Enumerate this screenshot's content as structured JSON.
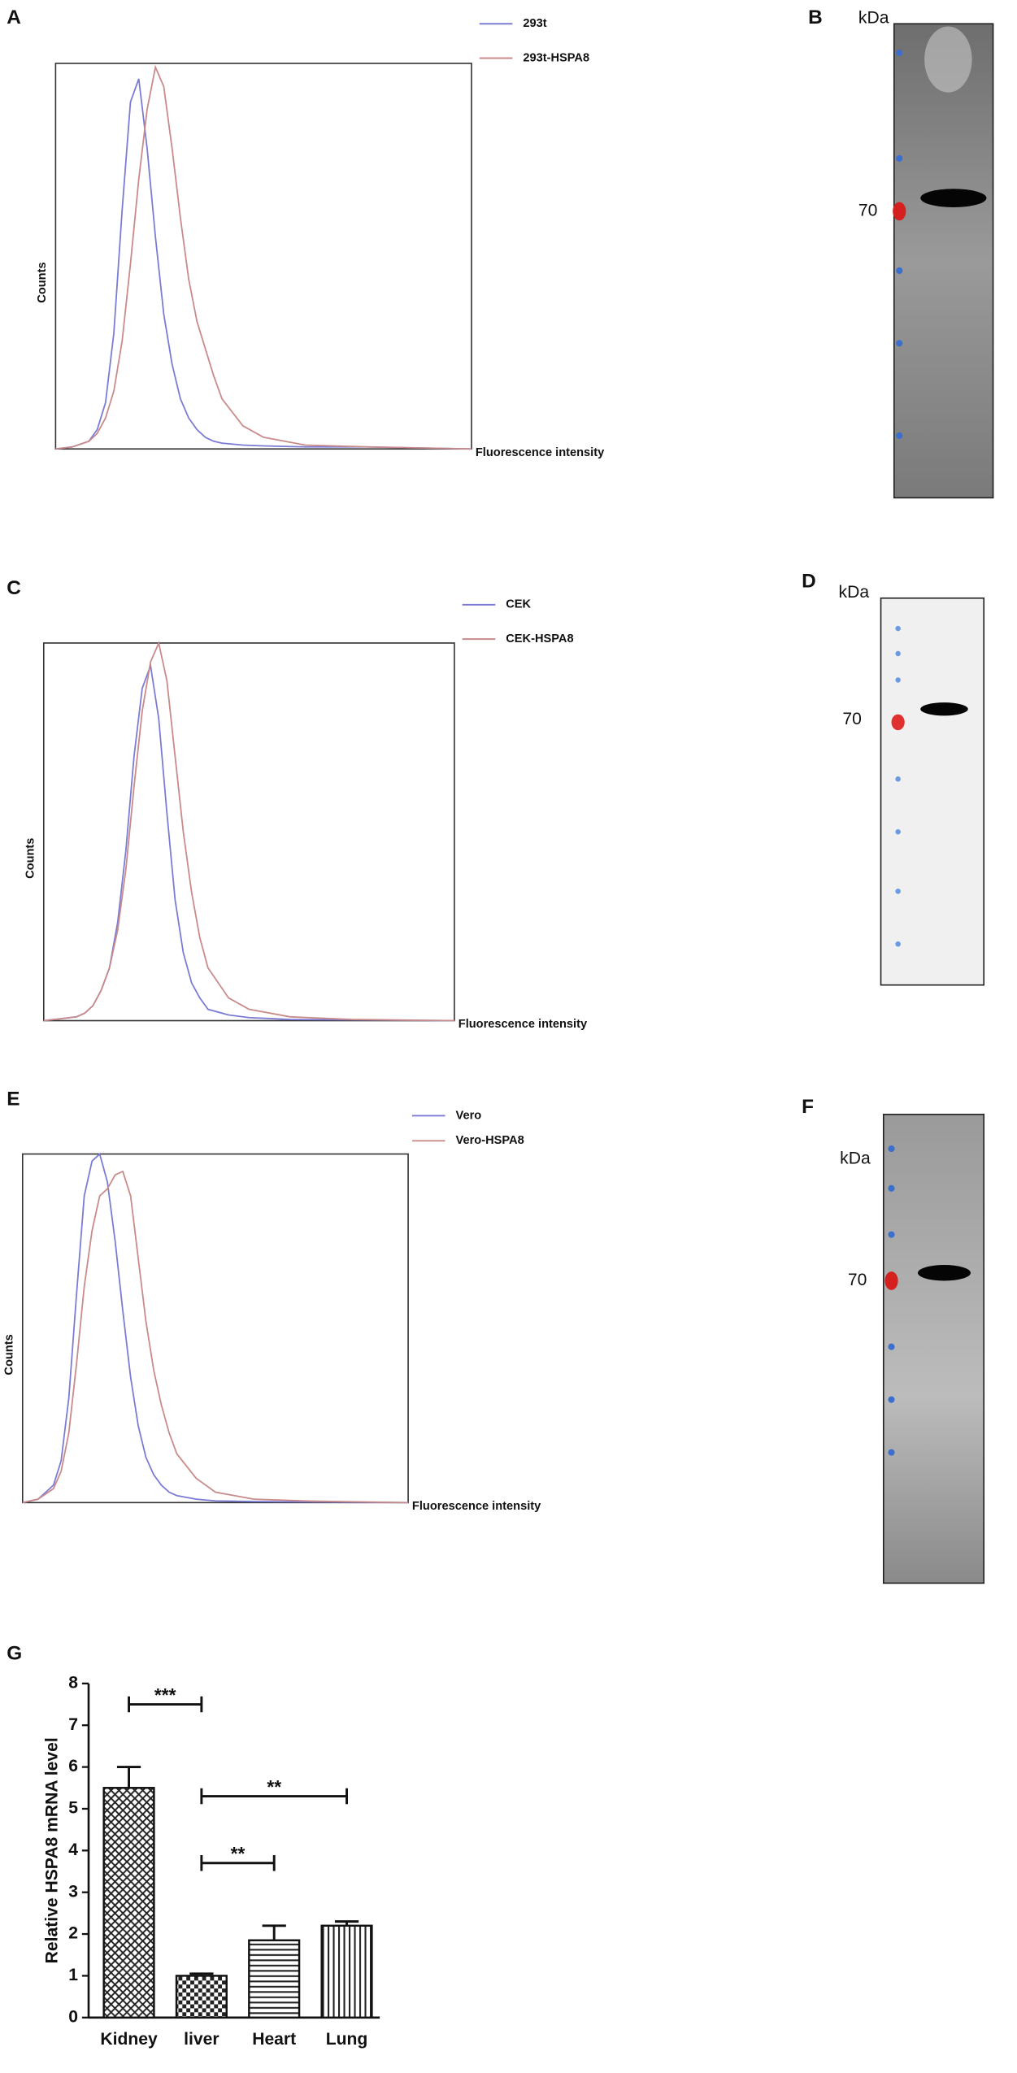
{
  "chart_data": [
    {
      "type": "line",
      "label": "A",
      "xlabel": "Fluorescence intensity",
      "ylabel": "Counts",
      "xlim": [
        0,
        100
      ],
      "ylim": [
        0,
        100
      ],
      "x": [
        0,
        4,
        8,
        10,
        12,
        14,
        16,
        18,
        20,
        22,
        24,
        26,
        28,
        30,
        32,
        34,
        36,
        38,
        40,
        45,
        50,
        60,
        75,
        100
      ],
      "series": [
        {
          "name": "293t",
          "color": "#7b7bd6",
          "values": [
            0,
            0.5,
            2,
            5,
            12,
            30,
            62,
            90,
            96,
            78,
            55,
            35,
            22,
            13,
            8,
            5,
            3,
            2,
            1.5,
            1,
            0.8,
            0.5,
            0.5,
            0
          ]
        },
        {
          "name": "293t-HSPA8",
          "color": "#c98a8a",
          "values": [
            0,
            0.5,
            2,
            4,
            8,
            15,
            28,
            48,
            70,
            88,
            99,
            94,
            78,
            60,
            44,
            33,
            26,
            19,
            13,
            6,
            3,
            1,
            0.5,
            0
          ]
        }
      ]
    },
    {
      "type": "line",
      "label": "C",
      "xlabel": "Fluorescence intensity",
      "ylabel": "Counts",
      "xlim": [
        0,
        100
      ],
      "ylim": [
        0,
        100
      ],
      "x": [
        0,
        4,
        8,
        10,
        12,
        14,
        16,
        18,
        20,
        22,
        24,
        26,
        28,
        30,
        32,
        34,
        36,
        38,
        40,
        45,
        50,
        60,
        75,
        100
      ],
      "series": [
        {
          "name": "CEK",
          "color": "#7b7bd6",
          "values": [
            0,
            0.5,
            1,
            2,
            4,
            8,
            14,
            26,
            45,
            70,
            88,
            94,
            80,
            55,
            32,
            18,
            10,
            6,
            3,
            1.5,
            0.8,
            0.3,
            0.2,
            0
          ]
        },
        {
          "name": "CEK-HSPA8",
          "color": "#c98a8a",
          "values": [
            0,
            0.5,
            1,
            2,
            4,
            8,
            14,
            24,
            40,
            62,
            82,
            95,
            100,
            90,
            70,
            50,
            34,
            22,
            14,
            6,
            3,
            1,
            0.3,
            0
          ]
        }
      ]
    },
    {
      "type": "line",
      "label": "E",
      "xlabel": "Fluorescence intensity",
      "ylabel": "Counts",
      "xlim": [
        0,
        100
      ],
      "ylim": [
        0,
        100
      ],
      "x": [
        0,
        4,
        8,
        10,
        12,
        14,
        16,
        18,
        20,
        22,
        24,
        26,
        28,
        30,
        32,
        34,
        36,
        38,
        40,
        45,
        50,
        60,
        75,
        100
      ],
      "series": [
        {
          "name": "Vero",
          "color": "#7b7bd6",
          "values": [
            0,
            1,
            5,
            12,
            30,
            60,
            88,
            98,
            100,
            92,
            75,
            55,
            36,
            22,
            13,
            8,
            5,
            3,
            2,
            1,
            0.5,
            0.3,
            0.2,
            0
          ]
        },
        {
          "name": "Vero-HSPA8",
          "color": "#c98a8a",
          "values": [
            0,
            1,
            4,
            9,
            20,
            40,
            62,
            78,
            88,
            90,
            94,
            95,
            88,
            70,
            52,
            38,
            28,
            20,
            14,
            7,
            3,
            1,
            0.4,
            0
          ]
        }
      ]
    },
    {
      "type": "bar",
      "label": "G",
      "ylabel": "Relative  HSPA8 mRNA  level",
      "categories": [
        "Kidney",
        "liver",
        "Heart",
        "Lung"
      ],
      "values": [
        5.5,
        1.0,
        1.85,
        2.2
      ],
      "errors": [
        0.5,
        0.05,
        0.35,
        0.1
      ],
      "patterns": [
        "crosshatch",
        "checker",
        "horizontal",
        "vertical"
      ],
      "ylim": [
        0,
        8
      ],
      "yticks": [
        0,
        1,
        2,
        3,
        4,
        5,
        6,
        7,
        8
      ],
      "annotations": [
        {
          "between": [
            1,
            2
          ],
          "label": "**"
        },
        {
          "between": [
            1,
            3
          ],
          "label": "**"
        },
        {
          "between": [
            0,
            1
          ],
          "label": "***"
        }
      ]
    }
  ],
  "blots": [
    {
      "label": "B",
      "unit": "kDa",
      "marker": "70"
    },
    {
      "label": "D",
      "unit": "kDa",
      "marker": "70"
    },
    {
      "label": "F",
      "unit": "kDa",
      "marker": "70"
    }
  ]
}
